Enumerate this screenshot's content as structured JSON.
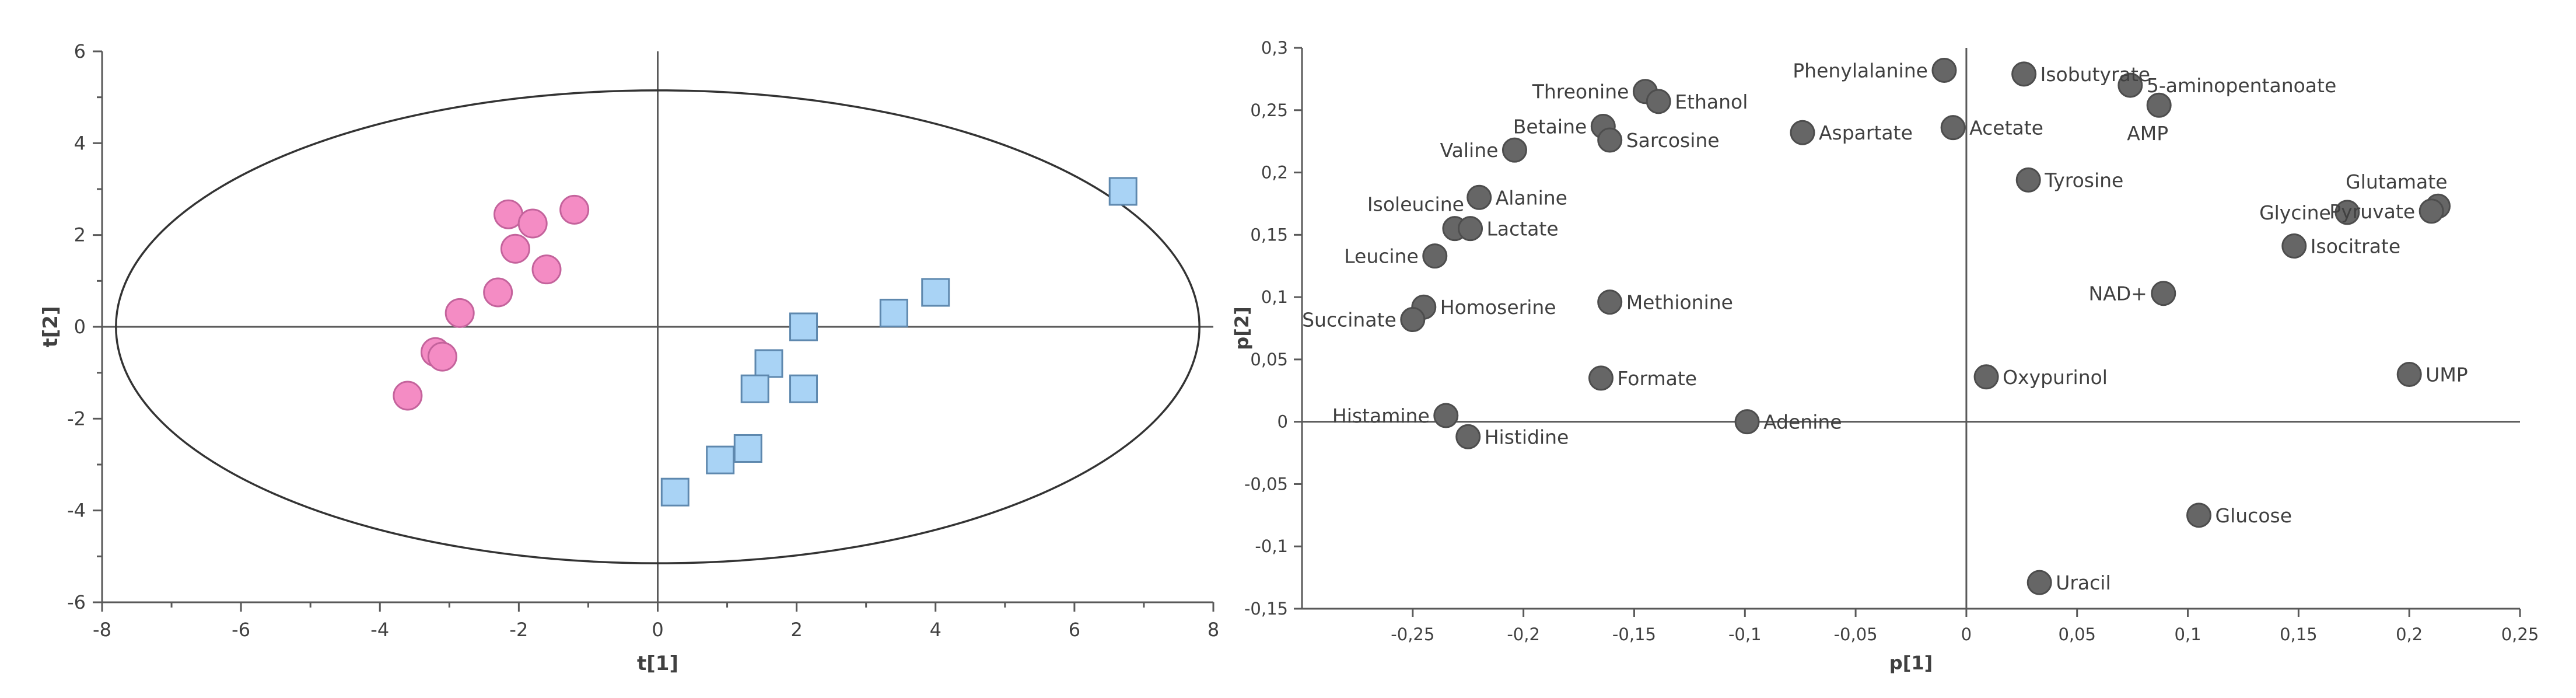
{
  "colors": {
    "group1_fill": "#f48cc4",
    "group1_stroke": "#c4639c",
    "group2_fill": "#a9d3f5",
    "group2_stroke": "#5e88ae",
    "loading_fill": "#666666",
    "loading_stroke": "#4d4d4d",
    "axis": "#595959",
    "text": "#404040"
  },
  "chart_data": [
    {
      "type": "scatter",
      "title": "",
      "xlabel": "t[1]",
      "ylabel": "t[2]",
      "xlim": [
        -8,
        8
      ],
      "ylim": [
        -6,
        6
      ],
      "xticks": [
        "-8",
        "-6",
        "-4",
        "-2",
        "0",
        "2",
        "4",
        "6",
        "8"
      ],
      "yticks": [
        "-6",
        "-4",
        "-2",
        "0",
        "2",
        "4",
        "6"
      ],
      "xtick_values": [
        -8,
        -6,
        -4,
        -2,
        0,
        2,
        4,
        6,
        8
      ],
      "ytick_values": [
        -6,
        -4,
        -2,
        0,
        2,
        4,
        6
      ],
      "ellipse": {
        "center": [
          0,
          0
        ],
        "rx": 7.8,
        "ry": 5.15
      },
      "series": [
        {
          "marker": "circle",
          "points": [
            [
              -2.15,
              2.45
            ],
            [
              -1.2,
              2.55
            ],
            [
              -1.8,
              2.25
            ],
            [
              -2.05,
              1.7
            ],
            [
              -1.6,
              1.25
            ],
            [
              -2.3,
              0.75
            ],
            [
              -2.85,
              0.3
            ],
            [
              -3.2,
              -0.55
            ],
            [
              -3.1,
              -0.65
            ],
            [
              -3.6,
              -1.5
            ]
          ]
        },
        {
          "marker": "square",
          "points": [
            [
              6.7,
              2.95
            ],
            [
              4.0,
              0.75
            ],
            [
              3.4,
              0.3
            ],
            [
              2.1,
              0.0
            ],
            [
              1.6,
              -0.8
            ],
            [
              1.4,
              -1.35
            ],
            [
              2.1,
              -1.35
            ],
            [
              1.3,
              -2.65
            ],
            [
              0.9,
              -2.9
            ],
            [
              0.25,
              -3.6
            ]
          ]
        }
      ]
    },
    {
      "type": "scatter",
      "title": "",
      "xlabel": "p[1]",
      "ylabel": "p[2]",
      "xlim": [
        -0.3,
        0.25
      ],
      "ylim": [
        -0.15,
        0.3
      ],
      "xticks": [
        "-0,25",
        "-0,2",
        "-0,15",
        "-0,1",
        "-0,05",
        "0",
        "0,05",
        "0,1",
        "0,15",
        "0,2",
        "0,25"
      ],
      "yticks": [
        "-0,15",
        "-0,1",
        "-0,05",
        "0",
        "0,05",
        "0,1",
        "0,15",
        "0,2",
        "0,25",
        "0,3"
      ],
      "xtick_values": [
        -0.25,
        -0.2,
        -0.15,
        -0.1,
        -0.05,
        0,
        0.05,
        0.1,
        0.15,
        0.2,
        0.25
      ],
      "ytick_values": [
        -0.15,
        -0.1,
        -0.05,
        0,
        0.05,
        0.1,
        0.15,
        0.2,
        0.25,
        0.3
      ],
      "points": [
        {
          "label": "Threonine",
          "x": -0.145,
          "y": 0.265,
          "side": "left"
        },
        {
          "label": "Ethanol",
          "x": -0.139,
          "y": 0.257,
          "side": "right"
        },
        {
          "label": "Betaine",
          "x": -0.164,
          "y": 0.237,
          "side": "left"
        },
        {
          "label": "Sarcosine",
          "x": -0.161,
          "y": 0.226,
          "side": "right"
        },
        {
          "label": "Valine",
          "x": -0.204,
          "y": 0.218,
          "side": "left"
        },
        {
          "label": "Alanine",
          "x": -0.22,
          "y": 0.18,
          "side": "right"
        },
        {
          "label": "Isoleucine",
          "x": -0.231,
          "y": 0.155,
          "side": "above-left"
        },
        {
          "label": "Lactate",
          "x": -0.224,
          "y": 0.155,
          "side": "right"
        },
        {
          "label": "Leucine",
          "x": -0.24,
          "y": 0.133,
          "side": "left"
        },
        {
          "label": "Homoserine",
          "x": -0.245,
          "y": 0.092,
          "side": "right"
        },
        {
          "label": "Succinate",
          "x": -0.25,
          "y": 0.082,
          "side": "left"
        },
        {
          "label": "Methionine",
          "x": -0.161,
          "y": 0.096,
          "side": "right"
        },
        {
          "label": "Formate",
          "x": -0.165,
          "y": 0.035,
          "side": "right"
        },
        {
          "label": "Histamine",
          "x": -0.235,
          "y": 0.005,
          "side": "left"
        },
        {
          "label": "Histidine",
          "x": -0.225,
          "y": -0.012,
          "side": "right"
        },
        {
          "label": "Adenine",
          "x": -0.099,
          "y": 0.0,
          "side": "right"
        },
        {
          "label": "Aspartate",
          "x": -0.074,
          "y": 0.232,
          "side": "right"
        },
        {
          "label": "Phenylalanine",
          "x": -0.01,
          "y": 0.282,
          "side": "left"
        },
        {
          "label": "Acetate",
          "x": -0.006,
          "y": 0.236,
          "side": "right"
        },
        {
          "label": "Isobutyrate",
          "x": 0.026,
          "y": 0.279,
          "side": "right"
        },
        {
          "label": "5-aminopentanoate",
          "x": 0.074,
          "y": 0.27,
          "side": "right"
        },
        {
          "label": "AMP",
          "x": 0.087,
          "y": 0.254,
          "side": "below-left"
        },
        {
          "label": "Tyrosine",
          "x": 0.028,
          "y": 0.194,
          "side": "right"
        },
        {
          "label": "Glutamate",
          "x": 0.213,
          "y": 0.173,
          "side": "above-left"
        },
        {
          "label": "Glycine",
          "x": 0.172,
          "y": 0.168,
          "side": "left"
        },
        {
          "label": "Pyruvate",
          "x": 0.21,
          "y": 0.169,
          "side": "left"
        },
        {
          "label": "Isocitrate",
          "x": 0.148,
          "y": 0.141,
          "side": "right"
        },
        {
          "label": "NAD+",
          "x": 0.089,
          "y": 0.103,
          "side": "left"
        },
        {
          "label": "Oxypurinol",
          "x": 0.009,
          "y": 0.036,
          "side": "right"
        },
        {
          "label": "UMP",
          "x": 0.2,
          "y": 0.038,
          "side": "right"
        },
        {
          "label": "Glucose",
          "x": 0.105,
          "y": -0.075,
          "side": "right"
        },
        {
          "label": "Uracil",
          "x": 0.033,
          "y": -0.129,
          "side": "right"
        }
      ]
    }
  ]
}
